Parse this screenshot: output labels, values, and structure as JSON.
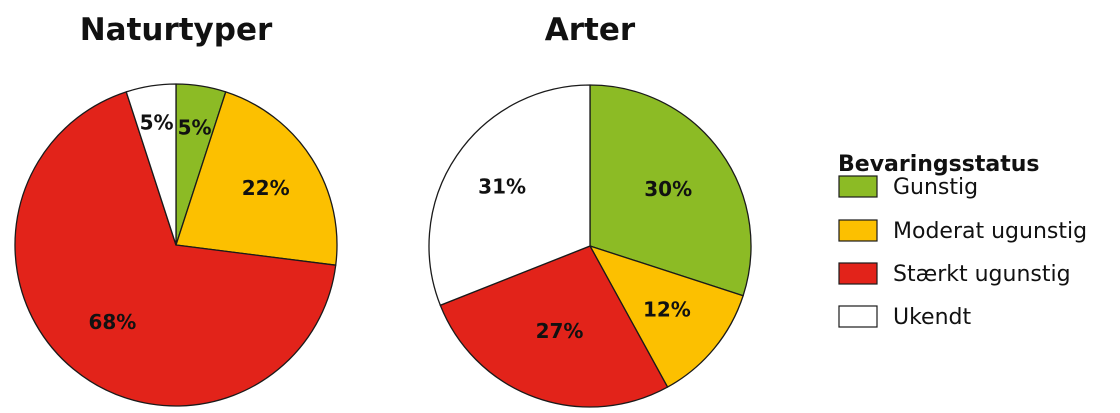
{
  "legend": {
    "title": "Bevaringsstatus",
    "items": [
      {
        "label": "Gunstig",
        "color": "#8cbb25"
      },
      {
        "label": "Moderat ugunstig",
        "color": "#fcc000"
      },
      {
        "label": "Stærkt ugunstig",
        "color": "#e2231a"
      },
      {
        "label": "Ukendt",
        "color": "#ffffff"
      }
    ]
  },
  "chart_data": [
    {
      "type": "pie",
      "title": "Naturtyper",
      "categories": [
        "Gunstig",
        "Moderat ugunstig",
        "Stærkt ugunstig",
        "Ukendt"
      ],
      "values": [
        5,
        22,
        68,
        5
      ],
      "labels": [
        "5%",
        "22%",
        "68%",
        "5%"
      ],
      "colors": [
        "#8cbb25",
        "#fcc000",
        "#e2231a",
        "#ffffff"
      ],
      "start": "12 o'clock",
      "direction": "clockwise",
      "legend_position": "right"
    },
    {
      "type": "pie",
      "title": "Arter",
      "categories": [
        "Gunstig",
        "Moderat ugunstig",
        "Stærkt ugunstig",
        "Ukendt"
      ],
      "values": [
        30,
        12,
        27,
        31
      ],
      "labels": [
        "30%",
        "12%",
        "27%",
        "31%"
      ],
      "colors": [
        "#8cbb25",
        "#fcc000",
        "#e2231a",
        "#ffffff"
      ],
      "start": "12 o'clock",
      "direction": "clockwise",
      "legend_position": "right"
    }
  ]
}
